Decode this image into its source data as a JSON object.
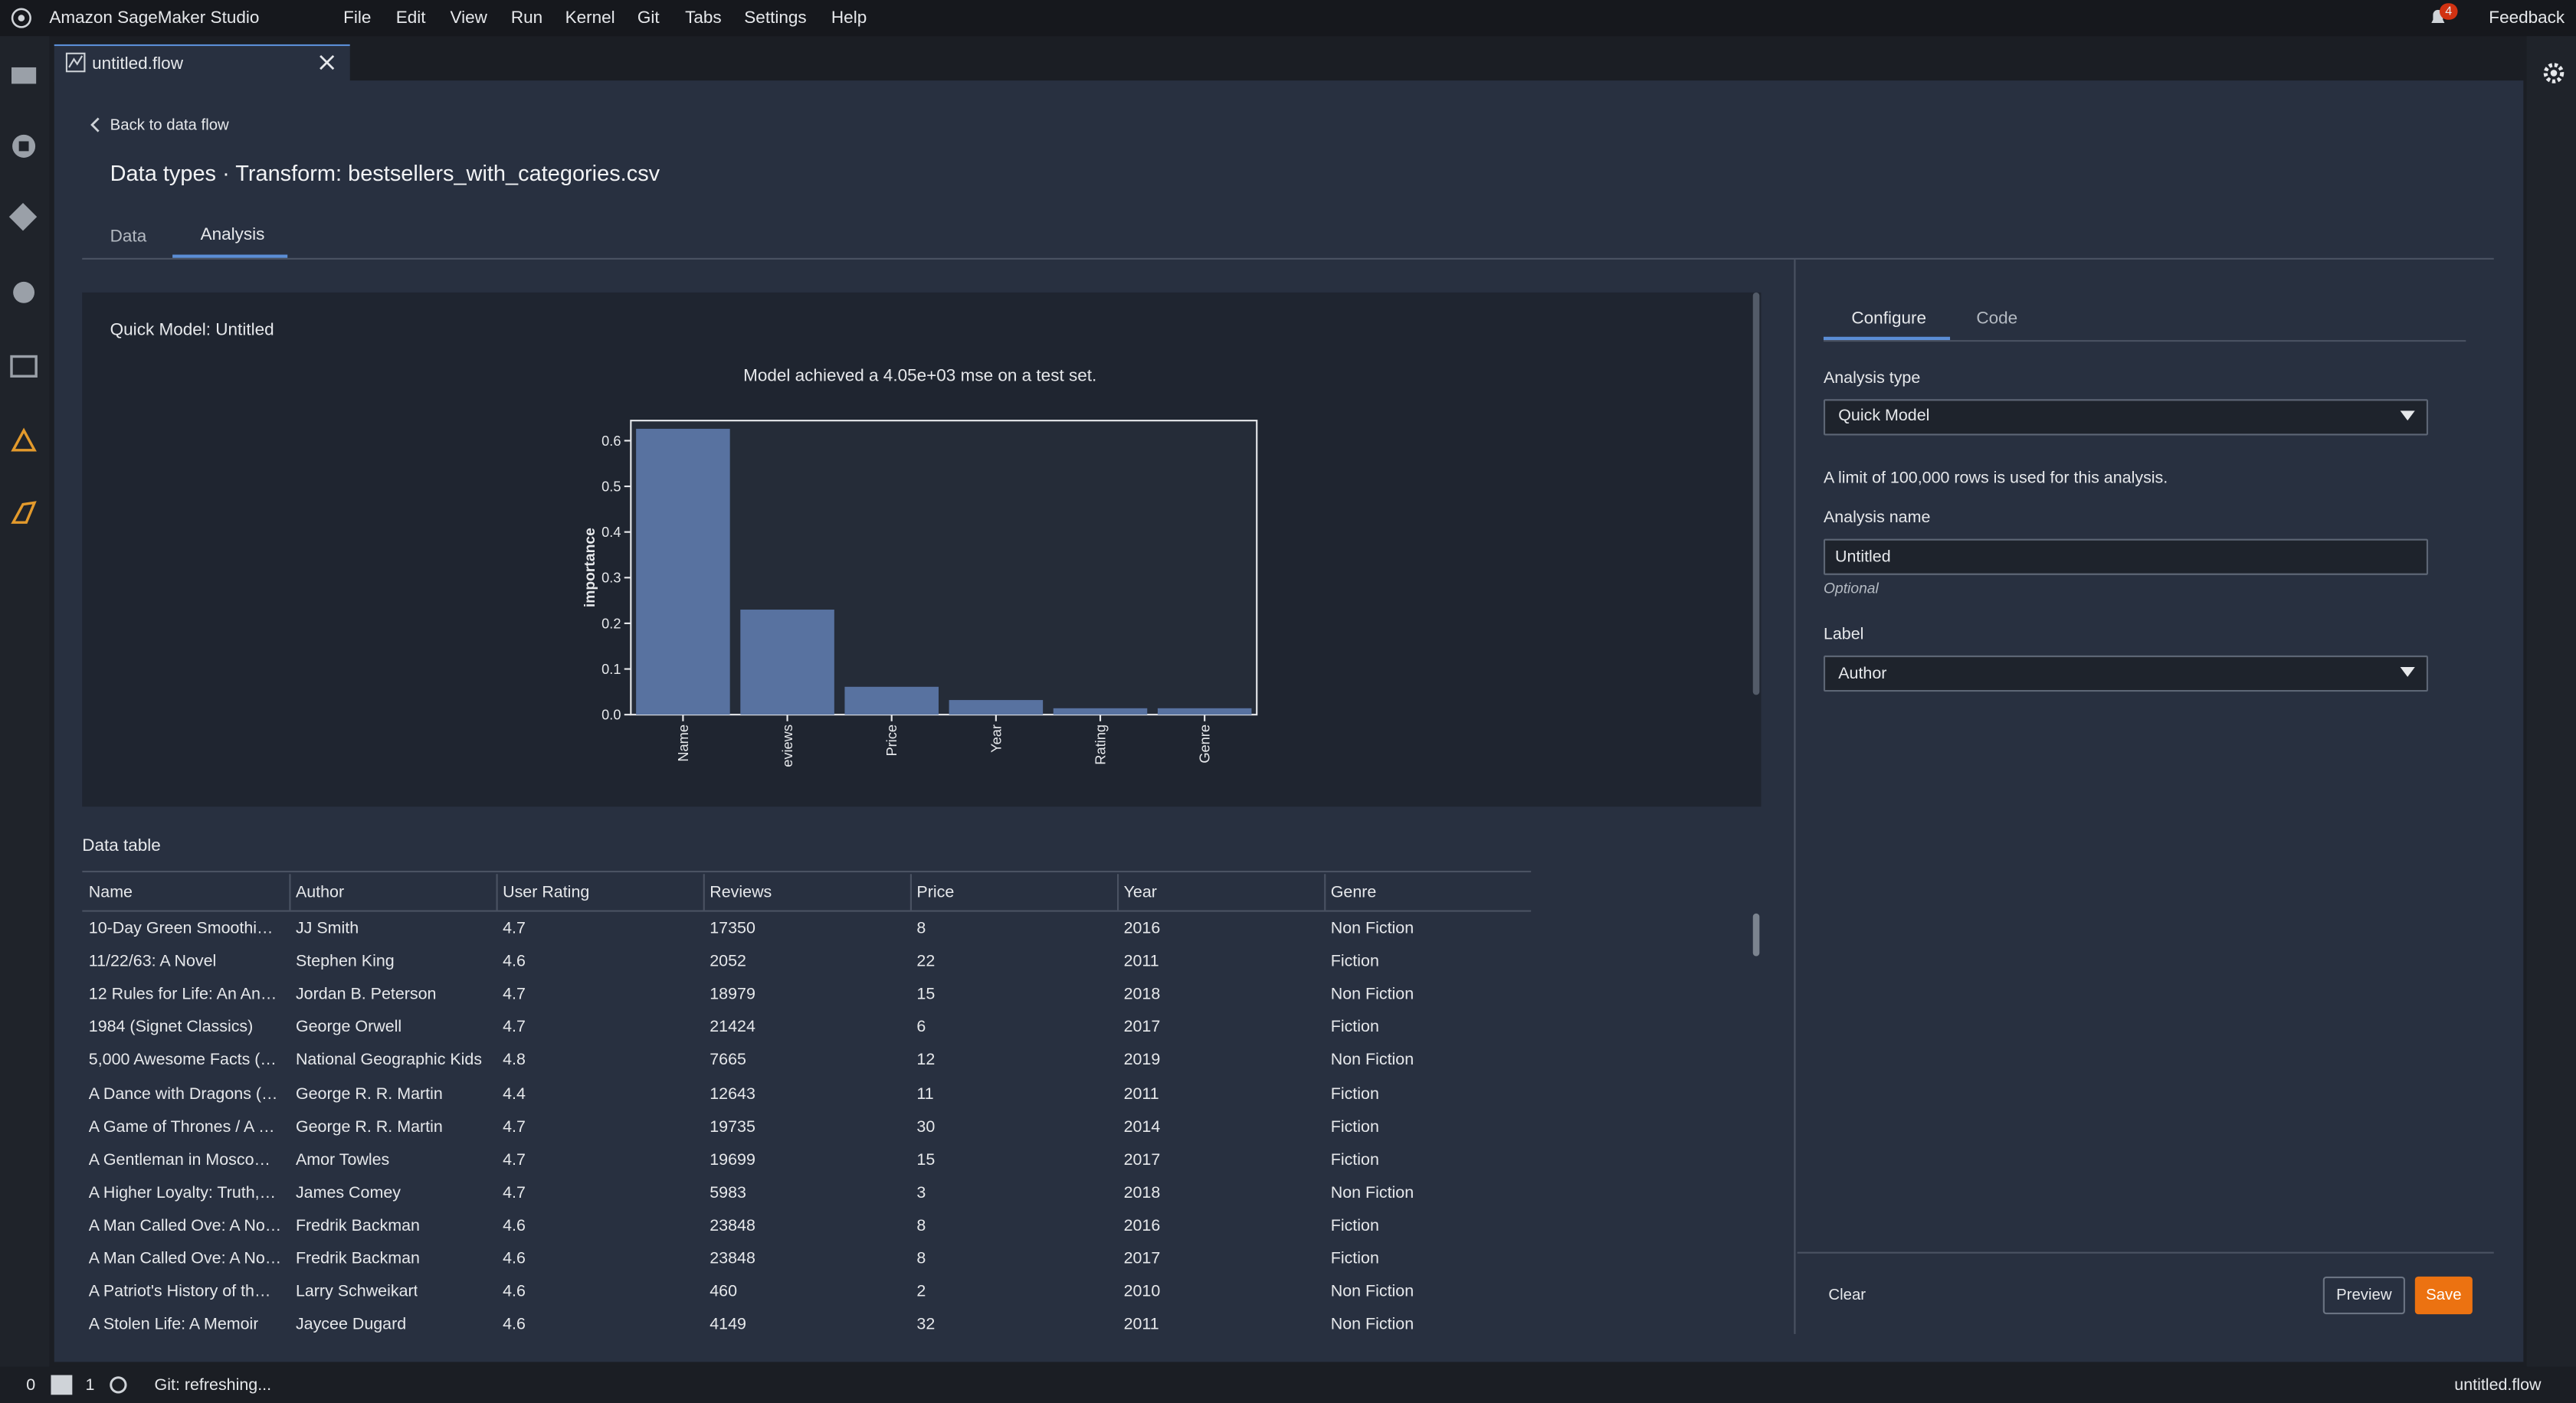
{
  "app": {
    "title": "Amazon SageMaker Studio",
    "menu": [
      "File",
      "Edit",
      "View",
      "Run",
      "Kernel",
      "Git",
      "Tabs",
      "Settings",
      "Help"
    ],
    "notifications": 4,
    "feedback": "Feedback"
  },
  "tab": {
    "label": "untitled.flow"
  },
  "page": {
    "back": "Back to data flow",
    "title": "Data types · Transform: bestsellers_with_categories.csv",
    "tabs": [
      "Data",
      "Analysis"
    ]
  },
  "chart_data": {
    "type": "bar",
    "title": "Quick Model: Untitled",
    "subtitle": "Model achieved a 4.05e+03 mse on a test set.",
    "y_label": "importance",
    "categories": [
      "Name",
      "eviews",
      "Price",
      "Year",
      "Rating",
      "Genre"
    ],
    "values": [
      0.626,
      0.23,
      0.061,
      0.032,
      0.014,
      0.014
    ],
    "color": "#5872a0",
    "ylim": [
      0,
      0.644
    ],
    "yticks": [
      {
        "value": 0,
        "label": "0.0"
      },
      0.1,
      0.2,
      0.3,
      0.4,
      0.5,
      0.6
    ]
  },
  "data_table": {
    "title": "Data table",
    "columns": [
      "Name",
      "Author",
      "User Rating",
      "Reviews",
      "Price",
      "Year",
      "Genre"
    ],
    "rows": [
      [
        "10-Day Green Smoothi…",
        "JJ Smith",
        4.7,
        17350,
        8,
        2016,
        "Non Fiction"
      ],
      [
        "11/22/63: A Novel",
        "Stephen King",
        4.6,
        2052,
        22,
        2011,
        "Fiction"
      ],
      [
        "12 Rules for Life: An An…",
        "Jordan B. Peterson",
        4.7,
        18979,
        15,
        2018,
        "Non Fiction"
      ],
      [
        "1984 (Signet Classics)",
        "George Orwell",
        4.7,
        21424,
        6,
        2017,
        "Fiction"
      ],
      [
        "5,000 Awesome Facts (…",
        "National Geographic Kids",
        4.8,
        7665,
        12,
        2019,
        "Non Fiction"
      ],
      [
        "A Dance with Dragons (…",
        "George R. R. Martin",
        4.4,
        12643,
        11,
        2011,
        "Fiction"
      ],
      [
        "A Game of Thrones / A …",
        "George R. R. Martin",
        4.7,
        19735,
        30,
        2014,
        "Fiction"
      ],
      [
        "A Gentleman in Mosco…",
        "Amor Towles",
        4.7,
        19699,
        15,
        2017,
        "Fiction"
      ],
      [
        "A Higher Loyalty: Truth,…",
        "James Comey",
        4.7,
        5983,
        3,
        2018,
        "Non Fiction"
      ],
      [
        "A Man Called Ove: A No…",
        "Fredrik Backman",
        4.6,
        23848,
        8,
        2016,
        "Fiction"
      ],
      [
        "A Man Called Ove: A No…",
        "Fredrik Backman",
        4.6,
        23848,
        8,
        2017,
        "Fiction"
      ],
      [
        "A Patriot's History of th…",
        "Larry Schweikart",
        4.6,
        460,
        2,
        2010,
        "Non Fiction"
      ],
      [
        "A Stolen Life: A Memoir",
        "Jaycee Dugard",
        4.6,
        4149,
        32,
        2011,
        "Non Fiction"
      ]
    ]
  },
  "config": {
    "tabs": [
      "Configure",
      "Code"
    ],
    "analysis_type_label": "Analysis type",
    "analysis_type": "Quick Model",
    "limit_note": "A limit of 100,000 rows is used for this analysis.",
    "analysis_name_label": "Analysis name",
    "analysis_name": "Untitled",
    "optional": "Optional",
    "label_label": "Label",
    "label": "Author",
    "buttons": [
      "Clear",
      "Preview",
      "Save"
    ]
  },
  "status": {
    "counts": [
      0,
      1
    ],
    "git": "Git: refreshing...",
    "file": "untitled.flow"
  }
}
